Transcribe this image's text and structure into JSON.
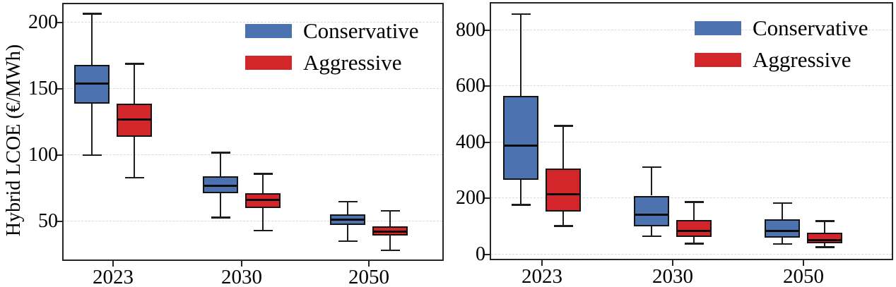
{
  "figure": {
    "background": "#ffffff",
    "axis_color": "#262626",
    "grid_color": "#d9d9d9",
    "series_colors": {
      "conservative": "#4C72B0",
      "aggressive": "#D2262B"
    }
  },
  "chart_data": [
    {
      "id": "left-panel",
      "type": "boxplot",
      "title": "",
      "xlabel": "",
      "ylabel": "Hybrid LCOE (€/MWh)",
      "categories": [
        "2023",
        "2030",
        "2050"
      ],
      "yticks": [
        50,
        100,
        150,
        200
      ],
      "ylim": [
        20,
        215
      ],
      "grid": "horizontal-dashed",
      "legend_position": "upper-right",
      "series": [
        {
          "name": "Conservative",
          "color": "#4C72B0",
          "boxes": [
            {
              "whisker_low": 100,
              "q1": 139,
              "median": 154,
              "q3": 168,
              "whisker_high": 207
            },
            {
              "whisker_low": 53,
              "q1": 71,
              "median": 77,
              "q3": 84,
              "whisker_high": 102
            },
            {
              "whisker_low": 35,
              "q1": 47,
              "median": 51,
              "q3": 55,
              "whisker_high": 65
            }
          ]
        },
        {
          "name": "Aggressive",
          "color": "#D2262B",
          "boxes": [
            {
              "whisker_low": 83,
              "q1": 114,
              "median": 127,
              "q3": 139,
              "whisker_high": 169
            },
            {
              "whisker_low": 43,
              "q1": 60,
              "median": 66,
              "q3": 71,
              "whisker_high": 86
            },
            {
              "whisker_low": 28,
              "q1": 39,
              "median": 42,
              "q3": 46,
              "whisker_high": 58
            }
          ]
        }
      ]
    },
    {
      "id": "right-panel",
      "type": "boxplot",
      "title": "",
      "xlabel": "",
      "ylabel": "",
      "categories": [
        "2023",
        "2030",
        "2050"
      ],
      "yticks": [
        0,
        200,
        400,
        600,
        800
      ],
      "ylim": [
        -20,
        900
      ],
      "grid": "horizontal-dashed",
      "legend_position": "upper-right",
      "series": [
        {
          "name": "Conservative",
          "color": "#4C72B0",
          "boxes": [
            {
              "whisker_low": 178,
              "q1": 267,
              "median": 388,
              "q3": 565,
              "whisker_high": 858
            },
            {
              "whisker_low": 66,
              "q1": 100,
              "median": 143,
              "q3": 210,
              "whisker_high": 312
            },
            {
              "whisker_low": 38,
              "q1": 60,
              "median": 84,
              "q3": 126,
              "whisker_high": 184
            }
          ]
        },
        {
          "name": "Aggressive",
          "color": "#D2262B",
          "boxes": [
            {
              "whisker_low": 103,
              "q1": 153,
              "median": 215,
              "q3": 307,
              "whisker_high": 460
            },
            {
              "whisker_low": 40,
              "q1": 63,
              "median": 84,
              "q3": 124,
              "whisker_high": 188
            },
            {
              "whisker_low": 27,
              "q1": 40,
              "median": 51,
              "q3": 78,
              "whisker_high": 120
            }
          ]
        }
      ]
    }
  ]
}
